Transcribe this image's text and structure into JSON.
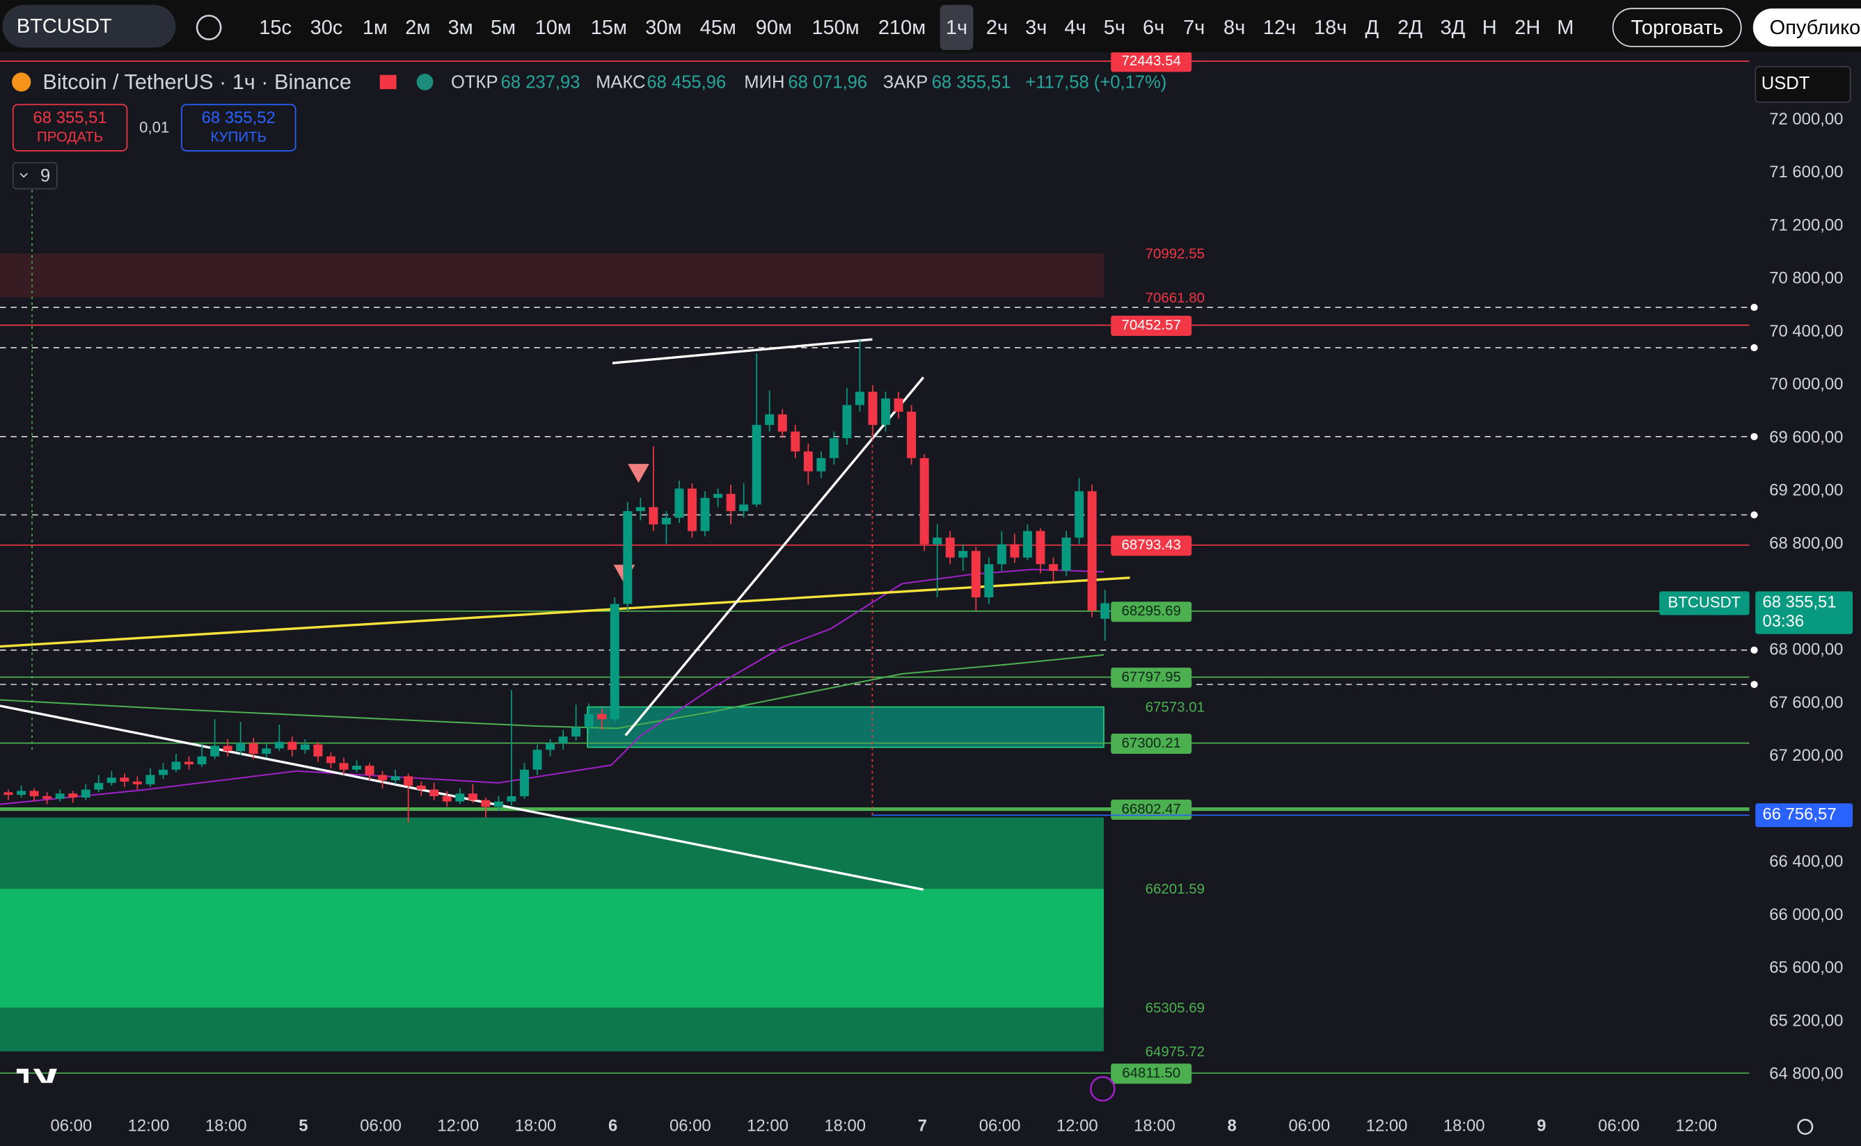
{
  "toolbar": {
    "symbol": "BTCUSDT",
    "intervals": [
      "15с",
      "30с",
      "1м",
      "2м",
      "3м",
      "5м",
      "10м",
      "15м",
      "30м",
      "45м",
      "90м",
      "150м",
      "210м",
      "1ч",
      "2ч",
      "3ч",
      "4ч",
      "5ч",
      "6ч",
      "7ч",
      "8ч",
      "12ч",
      "18ч",
      "Д",
      "2Д",
      "3Д",
      "Н",
      "2Н",
      "М"
    ],
    "active": "1ч",
    "trade": "Торговать",
    "publish": "Опублико"
  },
  "legend": {
    "title": "Bitcoin / TetherUS · 1ч · Binance",
    "open_label": "ОТКР",
    "open": "68 237,93",
    "high_label": "МАКС",
    "high": "68 455,96",
    "low_label": "МИН",
    "low": "68 071,96",
    "close_label": "ЗАКР",
    "close": "68 355,51",
    "change": "+117,58 (+0,17%)"
  },
  "order": {
    "sell_price": "68 355,51",
    "sell": "ПРОДАТЬ",
    "spread": "0,01",
    "buy_price": "68 355,52",
    "buy": "КУПИТЬ",
    "indicators": "9"
  },
  "currency": "USDT",
  "price_axis": {
    "ticks": [
      {
        "value": 72000,
        "label": "72 000,00"
      },
      {
        "value": 71600,
        "label": "71 600,00"
      },
      {
        "value": 71200,
        "label": "71 200,00"
      },
      {
        "value": 70800,
        "label": "70 800,00"
      },
      {
        "value": 70400,
        "label": "70 400,00"
      },
      {
        "value": 70000,
        "label": "70 000,00"
      },
      {
        "value": 69600,
        "label": "69 600,00"
      },
      {
        "value": 69200,
        "label": "69 200,00"
      },
      {
        "value": 68800,
        "label": "68 800,00"
      },
      {
        "value": 68000,
        "label": "68 000,00"
      },
      {
        "value": 67600,
        "label": "67 600,00"
      },
      {
        "value": 67200,
        "label": "67 200,00"
      },
      {
        "value": 66400,
        "label": "66 400,00"
      },
      {
        "value": 66000,
        "label": "66 000,00"
      },
      {
        "value": 65600,
        "label": "65 600,00"
      },
      {
        "value": 65200,
        "label": "65 200,00"
      },
      {
        "value": 64800,
        "label": "64 800,00"
      }
    ]
  },
  "last_price": {
    "symbol": "BTCUSDT",
    "value": 68355.51,
    "price": "68 355,51",
    "countdown": "03:36"
  },
  "alert_price": {
    "value": 66756.57,
    "label": "66 756,57"
  },
  "time_axis": [
    "06:00",
    "12:00",
    "18:00",
    "5",
    "06:00",
    "12:00",
    "18:00",
    "6",
    "06:00",
    "12:00",
    "18:00",
    "7",
    "06:00",
    "12:00",
    "18:00",
    "8",
    "06:00",
    "12:00",
    "18:00",
    "9",
    "06:00",
    "12:00"
  ],
  "levels": [
    {
      "value": 72443.54,
      "color": "#f23645",
      "badge": true
    },
    {
      "value": 70992.55,
      "color": "#f23645",
      "badge": false
    },
    {
      "value": {
        "value": 70661.8,
        "label": "70661.80"
      },
      "color": "#f23645",
      "badge": false
    },
    {
      "value": 70452.57,
      "color": "#f23645",
      "badge": true
    },
    {
      "value": 68793.43,
      "color": "#f23645",
      "badge": true
    },
    {
      "value": 68295.69,
      "color": "#4caf50",
      "badge": true
    },
    {
      "value": 67797.95,
      "color": "#4caf50",
      "badge": true
    },
    {
      "value": 67573.01,
      "color": "#4caf50",
      "badge": false
    },
    {
      "value": 67300.21,
      "color": "#4caf50",
      "badge": true
    },
    {
      "value": 66802.47,
      "color": "#4caf50",
      "badge": true
    },
    {
      "value": 66201.59,
      "color": "#4caf50",
      "badge": false
    },
    {
      "value": 65305.69,
      "color": "#4caf50",
      "badge": false
    },
    {
      "value": 64975.72,
      "color": "#4caf50",
      "badge": false
    },
    {
      "value": {
        "value": 64811.5,
        "label": "64811.50"
      },
      "color": "#4caf50",
      "badge": true
    }
  ],
  "candles": [
    [
      66900,
      66960,
      66860,
      66930
    ],
    [
      66930,
      66950,
      66870,
      66910
    ],
    [
      66910,
      66980,
      66890,
      66940
    ],
    [
      66940,
      66960,
      66860,
      66900
    ],
    [
      66900,
      66930,
      66840,
      66880
    ],
    [
      66880,
      66950,
      66860,
      66920
    ],
    [
      66920,
      66940,
      66850,
      66890
    ],
    [
      66890,
      66990,
      66870,
      66950
    ],
    [
      66950,
      67060,
      66930,
      67000
    ],
    [
      67000,
      67090,
      66980,
      67040
    ],
    [
      67040,
      67070,
      66970,
      67010
    ],
    [
      67010,
      67050,
      66950,
      66990
    ],
    [
      66990,
      67110,
      66970,
      67060
    ],
    [
      67060,
      67150,
      67030,
      67100
    ],
    [
      67100,
      67220,
      67080,
      67160
    ],
    [
      67160,
      67200,
      67100,
      67140
    ],
    [
      67140,
      67300,
      67120,
      67200
    ],
    [
      67200,
      67480,
      67180,
      67280
    ],
    [
      67280,
      67330,
      67200,
      67240
    ],
    [
      67240,
      67460,
      67210,
      67300
    ],
    [
      67300,
      67340,
      67180,
      67220
    ],
    [
      67220,
      67300,
      67190,
      67260
    ],
    [
      67260,
      67440,
      67240,
      67310
    ],
    [
      67310,
      67350,
      67200,
      67250
    ],
    [
      67250,
      67330,
      67220,
      67290
    ],
    [
      67290,
      67310,
      67160,
      67200
    ],
    [
      67200,
      67230,
      67110,
      67150
    ],
    [
      67150,
      67190,
      67060,
      67100
    ],
    [
      67100,
      67170,
      67080,
      67130
    ],
    [
      67130,
      67150,
      67020,
      67060
    ],
    [
      67060,
      67090,
      66960,
      67020
    ],
    [
      67020,
      67100,
      66990,
      67050
    ],
    [
      67050,
      67070,
      66700,
      66980
    ],
    [
      66980,
      67010,
      66900,
      66950
    ],
    [
      66950,
      67000,
      66870,
      66900
    ],
    [
      66900,
      66940,
      66820,
      66860
    ],
    [
      66860,
      66960,
      66840,
      66920
    ],
    [
      66920,
      66990,
      66850,
      66870
    ],
    [
      66870,
      66890,
      66740,
      66820
    ],
    [
      66820,
      66900,
      66790,
      66860
    ],
    [
      66860,
      67700,
      66830,
      66900
    ],
    [
      66900,
      67150,
      66880,
      67100
    ],
    [
      67100,
      67290,
      67060,
      67250
    ],
    [
      67250,
      67330,
      67200,
      67300
    ],
    [
      67300,
      67400,
      67250,
      67350
    ],
    [
      67350,
      67590,
      67320,
      67420
    ],
    [
      67420,
      67600,
      67380,
      67520
    ],
    [
      67520,
      67560,
      67400,
      67480
    ],
    [
      67480,
      68400,
      67460,
      68350
    ],
    [
      68350,
      69120,
      68300,
      69050
    ],
    [
      69050,
      69150,
      68980,
      69080
    ],
    [
      69080,
      69540,
      68900,
      68950
    ],
    [
      68950,
      69050,
      68800,
      69000
    ],
    [
      69000,
      69280,
      68960,
      69220
    ],
    [
      69220,
      69260,
      68850,
      68900
    ],
    [
      68900,
      69200,
      68860,
      69150
    ],
    [
      69150,
      69220,
      69080,
      69180
    ],
    [
      69180,
      69250,
      68950,
      69050
    ],
    [
      69050,
      69260,
      69000,
      69100
    ],
    [
      69100,
      70240,
      69080,
      69700
    ],
    [
      69700,
      69960,
      69650,
      69780
    ],
    [
      69780,
      69820,
      69600,
      69650
    ],
    [
      69650,
      69700,
      69450,
      69500
    ],
    [
      69500,
      69560,
      69250,
      69350
    ],
    [
      69350,
      69500,
      69300,
      69450
    ],
    [
      69450,
      69650,
      69400,
      69600
    ],
    [
      69600,
      69980,
      69550,
      69850
    ],
    [
      69850,
      70340,
      69800,
      69950
    ],
    [
      69950,
      70000,
      69600,
      69700
    ],
    [
      69700,
      69950,
      69650,
      69900
    ],
    [
      69900,
      69950,
      69750,
      69800
    ],
    [
      69800,
      69850,
      69400,
      69450
    ],
    [
      69450,
      69480,
      68750,
      68800
    ],
    [
      68800,
      68950,
      68400,
      68850
    ],
    [
      68850,
      68900,
      68650,
      68700
    ],
    [
      68700,
      68800,
      68600,
      68750
    ],
    [
      68750,
      68780,
      68300,
      68400
    ],
    [
      68400,
      68700,
      68350,
      68650
    ],
    [
      68650,
      68900,
      68600,
      68800
    ],
    [
      68800,
      68880,
      68660,
      68700
    ],
    [
      68700,
      68950,
      68680,
      68900
    ],
    [
      68900,
      68920,
      68580,
      68650
    ],
    [
      68650,
      68700,
      68520,
      68600
    ],
    [
      68600,
      68900,
      68560,
      68850
    ],
    [
      68850,
      69300,
      68800,
      69200
    ],
    [
      69200,
      69250,
      68250,
      68300
    ],
    [
      68237.93,
      68455.96,
      68071.96,
      68355.51
    ]
  ]
}
